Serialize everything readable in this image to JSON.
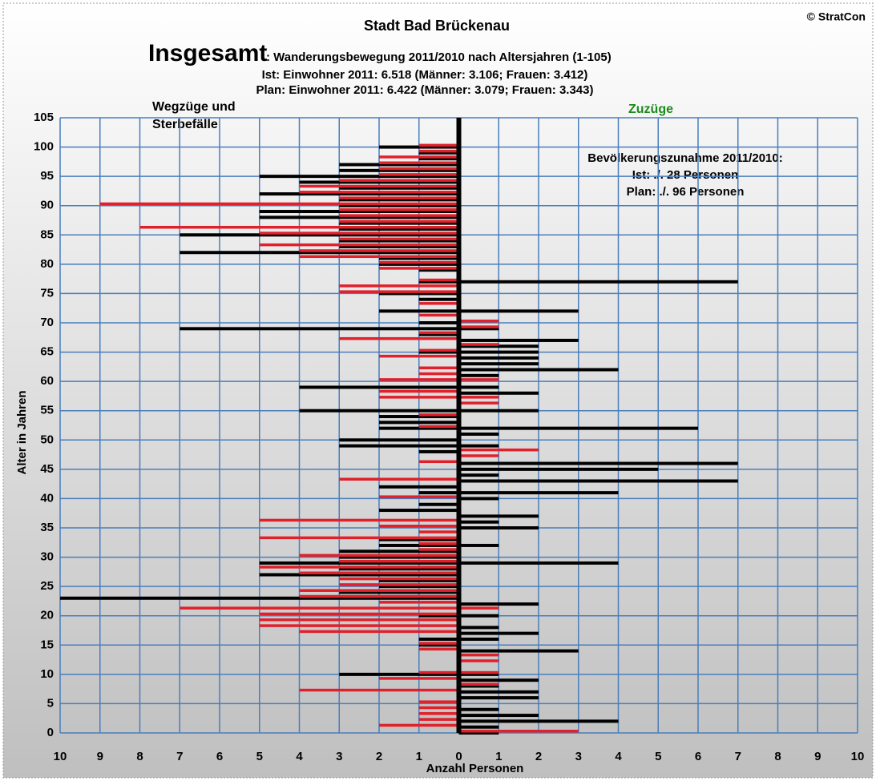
{
  "chart_data": {
    "type": "bar",
    "orientation": "horizontal",
    "title": "Stadt Bad Brückenau",
    "copyright": "© StratCon",
    "heading": "Insgesamt",
    "subtitle": ": Wanderungsbewegung 2011/2010 nach Altersjahren (1-105)",
    "subtitle_lines": [
      "Ist:  Einwohner 2011: 6.518 (Männer: 3.106; Frauen: 3.412)",
      "Plan: Einwohner 2011: 6.422  (Männer: 3.079; Frauen: 3.343)"
    ],
    "annotations": {
      "left": [
        "Wegzüge und",
        "Sterbefälle"
      ],
      "right": "Zuzüge",
      "summary": [
        "Bevölkerungszunahme 2011/2010:",
        "Ist: ./. 28 Personen",
        "Plan: ./. 96 Personen"
      ]
    },
    "x_label": "Anzahl Personen",
    "y_label": "Alter in Jahren",
    "categories": [
      0,
      1,
      2,
      3,
      4,
      5,
      6,
      7,
      8,
      9,
      10,
      11,
      12,
      13,
      14,
      15,
      16,
      17,
      18,
      19,
      20,
      21,
      22,
      23,
      24,
      25,
      26,
      27,
      28,
      29,
      30,
      31,
      32,
      33,
      34,
      35,
      36,
      37,
      38,
      39,
      40,
      41,
      42,
      43,
      44,
      45,
      46,
      47,
      48,
      49,
      50,
      51,
      52,
      53,
      54,
      55,
      56,
      57,
      58,
      59,
      60,
      61,
      62,
      63,
      64,
      65,
      66,
      67,
      68,
      69,
      70,
      71,
      72,
      73,
      74,
      75,
      76,
      77,
      78,
      79,
      80,
      81,
      82,
      83,
      84,
      85,
      86,
      87,
      88,
      89,
      90,
      91,
      92,
      93,
      94,
      95,
      96,
      97,
      98,
      99,
      100,
      101,
      102,
      103,
      104,
      105
    ],
    "series": [
      {
        "color": "#000000",
        "values": [
          0,
          0,
          0,
          0,
          0,
          0,
          0,
          0,
          0,
          0,
          -3,
          0,
          0,
          0,
          0,
          -1,
          -1,
          0,
          0,
          0,
          -1,
          0,
          0,
          -10,
          -3,
          -2,
          -2,
          -5,
          -3,
          -5,
          -3,
          -3,
          -2,
          -2,
          0,
          0,
          0,
          0,
          -2,
          -1,
          0,
          -1,
          -2,
          0,
          0,
          0,
          0,
          0,
          -1,
          -3,
          -3,
          0,
          -2,
          -2,
          -2,
          -4,
          0,
          0,
          0,
          -4,
          0,
          0,
          0,
          0,
          0,
          -1,
          0,
          0,
          -1,
          -7,
          -1,
          0,
          -2,
          0,
          -1,
          -2,
          0,
          -1,
          0,
          -1,
          -2,
          -2,
          -7,
          -3,
          -3,
          -7,
          -3,
          -3,
          -5,
          -5,
          -3,
          -3,
          -5,
          -3,
          -4,
          -5,
          -3,
          -3,
          -1,
          -1,
          -2,
          0,
          0,
          0,
          0,
          0
        ]
      },
      {
        "color": "#e0202a",
        "values": [
          0,
          -2,
          -1,
          -1,
          -1,
          -1,
          0,
          -4,
          0,
          -2,
          -1,
          0,
          0,
          0,
          -1,
          -1,
          0,
          -4,
          -5,
          -5,
          -5,
          -7,
          -2,
          -4,
          -4,
          -3,
          -3,
          -4,
          -5,
          -3,
          -4,
          -1,
          -1,
          -5,
          -1,
          -2,
          -5,
          0,
          0,
          0,
          -2,
          0,
          0,
          -3,
          0,
          0,
          -1,
          0,
          0,
          0,
          0,
          0,
          -1,
          0,
          -1,
          0,
          0,
          -2,
          -2,
          0,
          -2,
          -1,
          -1,
          0,
          -2,
          -1,
          0,
          -3,
          -1,
          0,
          0,
          -1,
          0,
          -1,
          0,
          -3,
          -3,
          -1,
          0,
          -2,
          -2,
          -4,
          -4,
          -5,
          -3,
          -5,
          -8,
          -3,
          -3,
          -3,
          -9,
          -3,
          -4,
          -4,
          -3,
          -2,
          -2,
          -2,
          -2,
          -1,
          -1,
          0,
          0,
          0,
          0,
          0
        ]
      },
      {
        "color": "#000000",
        "values": [
          1,
          1,
          4,
          2,
          1,
          0,
          2,
          2,
          1,
          2,
          1,
          0,
          0,
          0,
          3,
          0,
          1,
          2,
          1,
          0,
          1,
          0,
          2,
          0,
          0,
          0,
          0,
          0,
          0,
          4,
          0,
          0,
          1,
          0,
          0,
          2,
          1,
          2,
          0,
          0,
          1,
          4,
          0,
          7,
          1,
          5,
          7,
          0,
          0,
          1,
          0,
          1,
          6,
          0,
          0,
          2,
          0,
          0,
          2,
          1,
          0,
          1,
          4,
          2,
          2,
          2,
          2,
          3,
          0,
          1,
          0,
          0,
          3,
          0,
          0,
          0,
          0,
          7,
          0,
          0,
          0,
          0,
          0,
          0,
          0,
          0,
          0,
          0,
          0,
          0,
          0,
          0,
          0,
          0,
          0,
          0,
          0,
          0,
          0,
          0,
          0,
          0,
          0,
          0,
          0,
          0
        ]
      },
      {
        "color": "#e0202a",
        "values": [
          3,
          0,
          0,
          0,
          0,
          0,
          0,
          0,
          1,
          0,
          1,
          0,
          1,
          1,
          0,
          0,
          0,
          0,
          0,
          0,
          0,
          1,
          0,
          0,
          0,
          0,
          0,
          0,
          0,
          0,
          0,
          0,
          0,
          0,
          0,
          0,
          0,
          0,
          0,
          0,
          0,
          0,
          0,
          0,
          0,
          0,
          0,
          1,
          2,
          0,
          0,
          0,
          0,
          0,
          0,
          0,
          1,
          1,
          0,
          0,
          1,
          0,
          0,
          0,
          0,
          0,
          1,
          0,
          0,
          1,
          1,
          0,
          0,
          0,
          0,
          0,
          0,
          0,
          0,
          0,
          0,
          0,
          0,
          0,
          0,
          0,
          0,
          0,
          0,
          0,
          0,
          0,
          0,
          0,
          0,
          0,
          0,
          0,
          0,
          0,
          0,
          0,
          0,
          0,
          0,
          0
        ]
      }
    ],
    "xlim": [
      -10,
      10
    ],
    "xticks": [
      {
        "value": -10,
        "label": "10"
      },
      {
        "value": -9,
        "label": "9"
      },
      {
        "value": -8,
        "label": "8"
      },
      {
        "value": -7,
        "label": "7"
      },
      {
        "value": -6,
        "label": "6"
      },
      {
        "value": -5,
        "label": "5"
      },
      {
        "value": -4,
        "label": "4"
      },
      {
        "value": -3,
        "label": "3"
      },
      {
        "value": -2,
        "label": "2"
      },
      {
        "value": -1,
        "label": "1"
      },
      0,
      1,
      2,
      3,
      4,
      5,
      6,
      7,
      8,
      9,
      10
    ],
    "ylim": [
      0,
      105
    ],
    "yticks": [
      0,
      5,
      10,
      15,
      20,
      25,
      30,
      35,
      40,
      45,
      50,
      55,
      60,
      65,
      70,
      75,
      80,
      85,
      90,
      95,
      100,
      105
    ],
    "grid": true,
    "grid_color": "#4a7ebb",
    "annotation_color": "#1a8a1a"
  }
}
